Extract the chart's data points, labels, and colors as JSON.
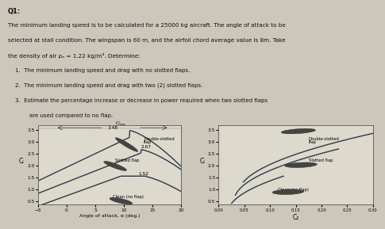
{
  "bg_color": "#ccc7ba",
  "plot_bg": "#ddd9cc",
  "title_text": "Q1:",
  "desc_lines": [
    "The minimum landing speed is to be calculated for a 25000 kg aircraft. The angle of attack to be",
    "selected at stall condition. The wingspan is 60 m, and the airfoil chord average value is 8m. Take",
    "the density of air ρₐ = 1.22 kg/m³. Determine:"
  ],
  "items": [
    [
      "1.  ",
      "The minimum landing speed and drag with no slotted flaps."
    ],
    [
      "2.  ",
      "The minimum landing speed and drag with two (2) slotted flaps."
    ],
    [
      "3.  ",
      "Estimate the percentage increase or decrease in power required when two slotted flaps"
    ],
    [
      "    ",
      "    are used compared to no flap."
    ]
  ],
  "left_xlabel": "Angle of attack, α (deg.)",
  "left_ylabel": "Cₗ",
  "left_xlim": [
    -5,
    20
  ],
  "left_ylim": [
    0.35,
    3.7
  ],
  "left_xticks": [
    -5,
    0,
    5,
    10,
    15,
    20
  ],
  "left_yticks": [
    0.5,
    1.0,
    1.5,
    2.0,
    2.5,
    3.0,
    3.5
  ],
  "right_xlabel": "C₂",
  "right_ylabel": "Cₗ",
  "right_xlim": [
    0,
    0.3
  ],
  "right_ylim": [
    0.35,
    3.7
  ],
  "right_xticks": [
    0,
    0.05,
    0.1,
    0.15,
    0.2,
    0.25,
    0.3
  ],
  "right_yticks": [
    0.5,
    1.0,
    1.5,
    2.0,
    2.5,
    3.0,
    3.5
  ],
  "curve_color": "#2a3a4a",
  "lw": 1.0
}
